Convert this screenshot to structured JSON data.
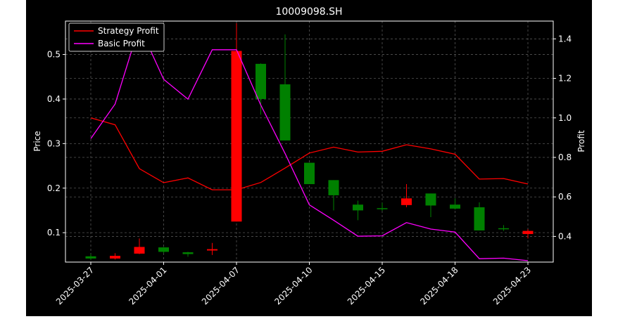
{
  "chart_data": {
    "type": "candlestick",
    "title": "10009098.SH",
    "ylabel_left": "Price",
    "ylabel_right": "Profit",
    "ylim_left": [
      0.034,
      0.575
    ],
    "ylim_right": [
      0.27,
      1.49
    ],
    "yticks_left": [
      "0.1",
      "0.2",
      "0.3",
      "0.4",
      "0.5"
    ],
    "yticks_right": [
      "0.4",
      "0.6",
      "0.8",
      "1.0",
      "1.2",
      "1.4"
    ],
    "x_tick_labels": [
      "2025-03-27",
      "2025-04-01",
      "2025-04-07",
      "2025-04-10",
      "2025-04-15",
      "2025-04-18",
      "2025-04-23"
    ],
    "grid": true,
    "legend_position": "top-left",
    "colors": {
      "up": "#ff0000",
      "down": "#008000",
      "strategy": "#ff0000",
      "basic": "#ff00ff",
      "background": "#000000",
      "grid": "#555555"
    },
    "candles": [
      {
        "open": 0.047,
        "close": 0.042,
        "high": 0.052,
        "low": 0.039
      },
      {
        "open": 0.042,
        "close": 0.048,
        "high": 0.054,
        "low": 0.04
      },
      {
        "open": 0.053,
        "close": 0.068,
        "high": 0.087,
        "low": 0.052
      },
      {
        "open": 0.067,
        "close": 0.057,
        "high": 0.068,
        "low": 0.054
      },
      {
        "open": 0.056,
        "close": 0.052,
        "high": 0.057,
        "low": 0.046
      },
      {
        "open": 0.06,
        "close": 0.063,
        "high": 0.077,
        "low": 0.05
      },
      {
        "open": 0.125,
        "close": 0.508,
        "high": 0.57,
        "low": 0.125
      },
      {
        "open": 0.479,
        "close": 0.4,
        "high": 0.48,
        "low": 0.365
      },
      {
        "open": 0.433,
        "close": 0.307,
        "high": 0.545,
        "low": 0.307
      },
      {
        "open": 0.257,
        "close": 0.209,
        "high": 0.257,
        "low": 0.209
      },
      {
        "open": 0.218,
        "close": 0.184,
        "high": 0.218,
        "low": 0.15
      },
      {
        "open": 0.163,
        "close": 0.15,
        "high": 0.172,
        "low": 0.128
      },
      {
        "open": 0.155,
        "close": 0.153,
        "high": 0.167,
        "low": 0.149
      },
      {
        "open": 0.162,
        "close": 0.177,
        "high": 0.209,
        "low": 0.157
      },
      {
        "open": 0.188,
        "close": 0.161,
        "high": 0.188,
        "low": 0.135
      },
      {
        "open": 0.163,
        "close": 0.154,
        "high": 0.177,
        "low": 0.152
      },
      {
        "open": 0.157,
        "close": 0.105,
        "high": 0.168,
        "low": 0.105
      },
      {
        "open": 0.11,
        "close": 0.109,
        "high": 0.117,
        "low": 0.104
      },
      {
        "open": 0.097,
        "close": 0.104,
        "high": 0.108,
        "low": 0.087
      }
    ],
    "series": [
      {
        "name": "Strategy Profit",
        "axis": "right",
        "values": [
          1.0,
          0.965,
          0.743,
          0.672,
          0.696,
          0.636,
          0.636,
          0.673,
          0.746,
          0.822,
          0.852,
          0.827,
          0.831,
          0.864,
          0.843,
          0.816,
          0.69,
          0.693,
          0.665
        ]
      },
      {
        "name": "Basic Profit",
        "axis": "right",
        "values": [
          0.895,
          1.07,
          1.465,
          1.195,
          1.095,
          1.345,
          1.345,
          1.065,
          0.82,
          0.56,
          0.482,
          0.401,
          0.403,
          0.47,
          0.437,
          0.422,
          0.287,
          0.29,
          0.277
        ]
      }
    ]
  }
}
